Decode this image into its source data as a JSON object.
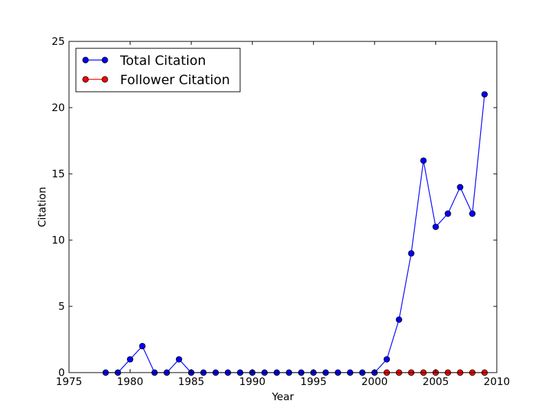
{
  "chart_data": {
    "type": "line",
    "title": "",
    "xlabel": "Year",
    "ylabel": "Citation",
    "xlim": [
      1975,
      2010
    ],
    "ylim": [
      0,
      25
    ],
    "xticks": [
      1975,
      1980,
      1985,
      1990,
      1995,
      2000,
      2005,
      2010
    ],
    "yticks": [
      0,
      5,
      10,
      15,
      20,
      25
    ],
    "grid": false,
    "legend": "top-left",
    "series": [
      {
        "name": "Total Citation",
        "color": "#0000ff",
        "x": [
          1978,
          1979,
          1980,
          1981,
          1982,
          1983,
          1984,
          1985,
          1986,
          1987,
          1988,
          1989,
          1990,
          1991,
          1992,
          1993,
          1994,
          1995,
          1996,
          1997,
          1998,
          1999,
          2000,
          2001,
          2002,
          2003,
          2004,
          2005,
          2006,
          2007,
          2008,
          2009
        ],
        "y": [
          0,
          0,
          1,
          2,
          0,
          0,
          1,
          0,
          0,
          0,
          0,
          0,
          0,
          0,
          0,
          0,
          0,
          0,
          0,
          0,
          0,
          0,
          0,
          1,
          4,
          9,
          16,
          11,
          12,
          14,
          12,
          21
        ]
      },
      {
        "name": "Follower Citation",
        "color": "#ff0000",
        "x": [
          2001,
          2002,
          2003,
          2004,
          2005,
          2006,
          2007,
          2008,
          2009
        ],
        "y": [
          0,
          0,
          0,
          0,
          0,
          0,
          0,
          0,
          0
        ]
      }
    ]
  }
}
